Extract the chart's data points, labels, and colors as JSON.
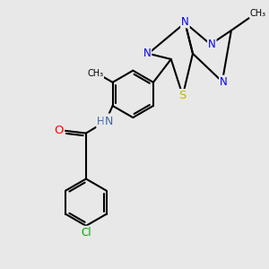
{
  "bg_color": "#e8e8e8",
  "bond_color": "#000000",
  "bond_width": 1.5,
  "atom_colors": {
    "N": "#0000ee",
    "O": "#ff0000",
    "S": "#bbbb00",
    "Cl": "#00aa00",
    "C": "#000000",
    "H": "#4466aa"
  },
  "font_size": 8.5,
  "fig_width": 3.0,
  "fig_height": 3.0,
  "xlim": [
    0,
    10
  ],
  "ylim": [
    0,
    10
  ]
}
